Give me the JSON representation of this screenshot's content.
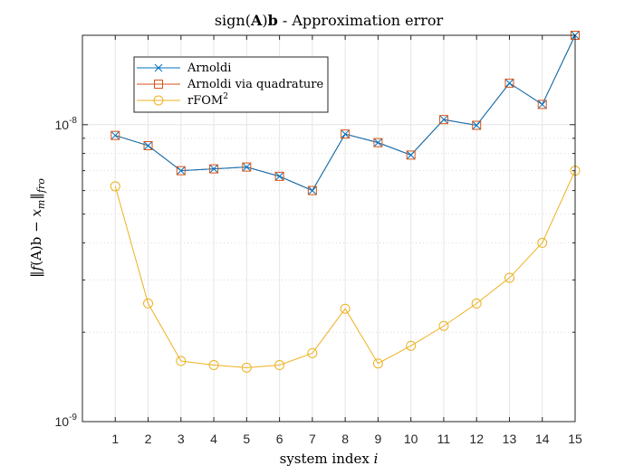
{
  "chart_data": {
    "type": "line",
    "title": "sign(A)b - Approximation error",
    "title_parts": {
      "prefix": "sign(",
      "A": "A",
      "close": ")",
      "b": "b",
      "suffix": " - Approximation error"
    },
    "xlabel": "system index i",
    "xlabel_parts": {
      "main": "system index ",
      "var": "i"
    },
    "ylabel": "‖f(A)b − x_m‖_fro",
    "ylabel_parts": {
      "open": "‖",
      "f": "f",
      "arg": "(A)b",
      "minus": " − ",
      "x": "x",
      "m": "m",
      "close": "‖",
      "sub": "fro"
    },
    "x": [
      1,
      2,
      3,
      4,
      5,
      6,
      7,
      8,
      9,
      10,
      11,
      12,
      13,
      14,
      15
    ],
    "x_tick_labels": [
      "1",
      "2",
      "3",
      "4",
      "5",
      "6",
      "7",
      "8",
      "9",
      "10",
      "11",
      "12",
      "13",
      "14",
      "15"
    ],
    "xlim": [
      0,
      15
    ],
    "ylim": [
      1e-09,
      2e-08
    ],
    "y_scale": "log",
    "y_tick_labels": [
      {
        "value": 1e-08,
        "base": "10",
        "exp": "-8"
      },
      {
        "value": 1e-09,
        "base": "10",
        "exp": "-9"
      }
    ],
    "grid": true,
    "legend_placement": "top-left",
    "series": [
      {
        "name": "Arnoldi",
        "color": "#0072BD",
        "marker": "x",
        "values": [
          9.2e-09,
          8.5e-09,
          7e-09,
          7.1e-09,
          7.2e-09,
          6.7e-09,
          6e-09,
          9.3e-09,
          8.7e-09,
          7.9e-09,
          1.04e-08,
          9.95e-09,
          1.38e-08,
          1.17e-08,
          2e-08
        ]
      },
      {
        "name": "Arnoldi via quadrature",
        "color": "#D95319",
        "marker": "square",
        "values": [
          9.2e-09,
          8.5e-09,
          7e-09,
          7.1e-09,
          7.2e-09,
          6.7e-09,
          6e-09,
          9.3e-09,
          8.7e-09,
          7.9e-09,
          1.04e-08,
          9.95e-09,
          1.38e-08,
          1.17e-08,
          2e-08
        ]
      },
      {
        "name": "rFOM²",
        "name_parts": {
          "base": "rFOM",
          "sup": "2"
        },
        "color": "#EDB120",
        "marker": "circle",
        "values": [
          6.2e-09,
          2.5e-09,
          1.6e-09,
          1.55e-09,
          1.52e-09,
          1.55e-09,
          1.7e-09,
          2.4e-09,
          1.57e-09,
          1.8e-09,
          2.1e-09,
          2.5e-09,
          3.05e-09,
          4e-09,
          7e-09
        ]
      }
    ]
  }
}
